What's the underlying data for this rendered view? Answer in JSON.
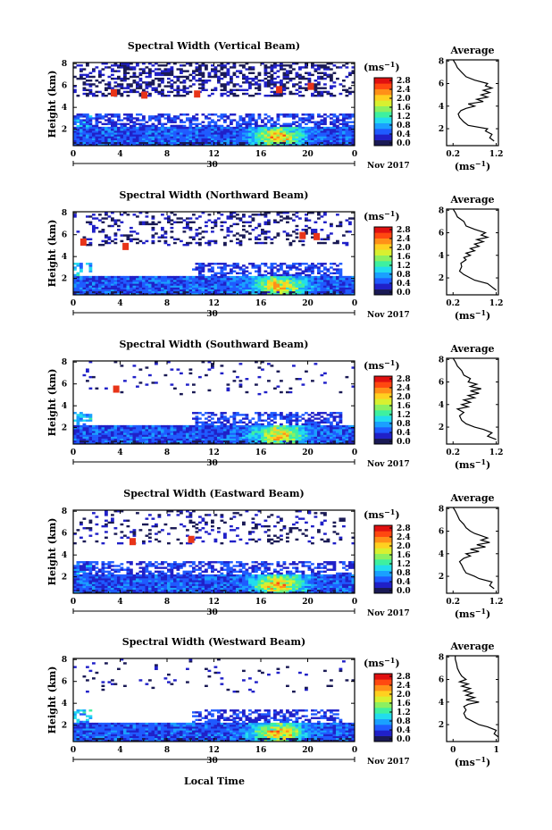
{
  "x_axis_title": "Local Time",
  "colorbar": {
    "unit": "(ms",
    "unit_sup": "−1",
    "unit_close": ")",
    "ticks": [
      "0.0",
      "0.4",
      "0.8",
      "1.2",
      "1.6",
      "2.0",
      "2.4",
      "2.8"
    ],
    "colors": [
      "#1a1a55",
      "#2020c8",
      "#1f5bff",
      "#1aa0ff",
      "#22dcee",
      "#3ef0a0",
      "#8cf060",
      "#d8f030",
      "#ffd020",
      "#ff9018",
      "#ff4810",
      "#e01010"
    ]
  },
  "chart_data": [
    {
      "type": "heatmap",
      "title": "Spectral Width (Vertical Beam)",
      "ylabel": "Height (km)",
      "ylim": [
        0.5,
        8.1
      ],
      "yticks": [
        "8",
        "6",
        "4",
        "2"
      ],
      "xlim": [
        0,
        24
      ],
      "xticks": [
        "0",
        "4",
        "8",
        "12",
        "16",
        "20",
        "0"
      ],
      "date_mark": "30",
      "date_label": "Nov 2017",
      "color_range": [
        0.0,
        2.8
      ],
      "average": {
        "title": "Average",
        "xlabel": "(ms",
        "xlabel_sup": "−1",
        "xlabel_close": ")",
        "xticks": [
          "0.2",
          "1.2"
        ],
        "xtick_values": [
          0.2,
          1.2
        ],
        "yticks": [
          "8",
          "6",
          "4",
          "2"
        ],
        "profile": [
          [
            0.9,
            1.15
          ],
          [
            1.2,
            1.05
          ],
          [
            1.5,
            1.1
          ],
          [
            1.8,
            0.95
          ],
          [
            2.0,
            1.0
          ],
          [
            2.3,
            0.55
          ],
          [
            2.6,
            0.45
          ],
          [
            3.0,
            0.35
          ],
          [
            3.3,
            0.32
          ],
          [
            3.6,
            0.38
          ],
          [
            3.8,
            0.5
          ],
          [
            4.0,
            0.7
          ],
          [
            4.2,
            0.55
          ],
          [
            4.4,
            0.9
          ],
          [
            4.6,
            0.75
          ],
          [
            4.8,
            1.0
          ],
          [
            5.0,
            0.85
          ],
          [
            5.2,
            1.05
          ],
          [
            5.4,
            0.9
          ],
          [
            5.6,
            1.1
          ],
          [
            5.8,
            0.95
          ],
          [
            6.0,
            1.0
          ],
          [
            6.3,
            0.7
          ],
          [
            6.6,
            0.5
          ],
          [
            7.0,
            0.4
          ],
          [
            7.4,
            0.3
          ],
          [
            7.8,
            0.25
          ],
          [
            8.1,
            0.2
          ]
        ]
      }
    },
    {
      "type": "heatmap",
      "title": "Spectral Width (Northward Beam)",
      "ylabel": "Height (km)",
      "ylim": [
        0.5,
        8.1
      ],
      "yticks": [
        "8",
        "6",
        "4",
        "2"
      ],
      "xlim": [
        0,
        24
      ],
      "xticks": [
        "0",
        "4",
        "8",
        "12",
        "16",
        "20",
        "0"
      ],
      "date_mark": "30",
      "date_label": "Nov 2017",
      "color_range": [
        0.0,
        2.8
      ],
      "average": {
        "title": "Average",
        "xlabel": "(ms",
        "xlabel_sup": "−1",
        "xlabel_close": ")",
        "xticks": [
          "0.2",
          "1.2"
        ],
        "xtick_values": [
          0.2,
          1.2
        ],
        "yticks": [
          "8",
          "6",
          "4",
          "2"
        ],
        "profile": [
          [
            0.9,
            1.2
          ],
          [
            1.2,
            1.1
          ],
          [
            1.5,
            1.0
          ],
          [
            1.8,
            0.7
          ],
          [
            2.0,
            0.6
          ],
          [
            2.3,
            0.45
          ],
          [
            2.6,
            0.35
          ],
          [
            3.0,
            0.4
          ],
          [
            3.3,
            0.38
          ],
          [
            3.6,
            0.5
          ],
          [
            3.8,
            0.45
          ],
          [
            4.0,
            0.6
          ],
          [
            4.2,
            0.5
          ],
          [
            4.4,
            0.7
          ],
          [
            4.6,
            0.6
          ],
          [
            4.8,
            0.8
          ],
          [
            5.0,
            0.7
          ],
          [
            5.2,
            0.9
          ],
          [
            5.4,
            0.75
          ],
          [
            5.6,
            1.0
          ],
          [
            5.8,
            0.85
          ],
          [
            6.0,
            0.95
          ],
          [
            6.3,
            0.7
          ],
          [
            6.6,
            0.5
          ],
          [
            7.0,
            0.45
          ],
          [
            7.4,
            0.3
          ],
          [
            7.8,
            0.25
          ],
          [
            8.1,
            0.2
          ]
        ]
      }
    },
    {
      "type": "heatmap",
      "title": "Spectral Width (Southward Beam)",
      "ylabel": "Height (km)",
      "ylim": [
        0.5,
        8.1
      ],
      "yticks": [
        "8",
        "6",
        "4",
        "2"
      ],
      "xlim": [
        0,
        24
      ],
      "xticks": [
        "0",
        "4",
        "8",
        "12",
        "16",
        "20",
        "0"
      ],
      "date_mark": "30",
      "date_label": "Nov 2017",
      "color_range": [
        0.0,
        2.8
      ],
      "average": {
        "title": "Average",
        "xlabel": "(ms",
        "xlabel_sup": "−1",
        "xlabel_close": ")",
        "xticks": [
          "0.2",
          "1.2"
        ],
        "xtick_values": [
          0.2,
          1.2
        ],
        "yticks": [
          "8",
          "6",
          "4",
          "2"
        ],
        "profile": [
          [
            0.9,
            1.2
          ],
          [
            1.2,
            1.0
          ],
          [
            1.5,
            1.1
          ],
          [
            1.8,
            0.9
          ],
          [
            2.0,
            0.7
          ],
          [
            2.3,
            0.5
          ],
          [
            2.6,
            0.4
          ],
          [
            3.0,
            0.35
          ],
          [
            3.3,
            0.45
          ],
          [
            3.6,
            0.3
          ],
          [
            3.8,
            0.55
          ],
          [
            4.0,
            0.4
          ],
          [
            4.2,
            0.6
          ],
          [
            4.4,
            0.45
          ],
          [
            4.6,
            0.7
          ],
          [
            4.8,
            0.55
          ],
          [
            5.0,
            0.8
          ],
          [
            5.2,
            0.6
          ],
          [
            5.4,
            0.85
          ],
          [
            5.6,
            0.6
          ],
          [
            5.8,
            0.75
          ],
          [
            6.0,
            0.55
          ],
          [
            6.3,
            0.6
          ],
          [
            6.6,
            0.45
          ],
          [
            7.0,
            0.4
          ],
          [
            7.4,
            0.3
          ],
          [
            7.8,
            0.25
          ],
          [
            8.1,
            0.2
          ]
        ]
      }
    },
    {
      "type": "heatmap",
      "title": "Spectral Width (Eastward Beam)",
      "ylabel": "Height (km)",
      "ylim": [
        0.5,
        8.1
      ],
      "yticks": [
        "8",
        "6",
        "4",
        "2"
      ],
      "xlim": [
        0,
        24
      ],
      "xticks": [
        "0",
        "4",
        "8",
        "12",
        "16",
        "20",
        "0"
      ],
      "date_mark": "30",
      "date_label": "Nov 2017",
      "color_range": [
        0.0,
        2.8
      ],
      "average": {
        "title": "Average",
        "xlabel": "(ms",
        "xlabel_sup": "−1",
        "xlabel_close": ")",
        "xticks": [
          "0.2",
          "1.2"
        ],
        "xtick_values": [
          0.2,
          1.2
        ],
        "yticks": [
          "8",
          "6",
          "4",
          "2"
        ],
        "profile": [
          [
            0.9,
            1.15
          ],
          [
            1.2,
            1.05
          ],
          [
            1.5,
            1.1
          ],
          [
            1.8,
            0.8
          ],
          [
            2.0,
            0.7
          ],
          [
            2.3,
            0.5
          ],
          [
            2.6,
            0.45
          ],
          [
            3.0,
            0.4
          ],
          [
            3.3,
            0.35
          ],
          [
            3.6,
            0.45
          ],
          [
            3.8,
            0.6
          ],
          [
            4.0,
            0.5
          ],
          [
            4.2,
            0.8
          ],
          [
            4.4,
            0.6
          ],
          [
            4.6,
            0.95
          ],
          [
            4.8,
            0.75
          ],
          [
            5.0,
            1.05
          ],
          [
            5.2,
            0.85
          ],
          [
            5.4,
            1.0
          ],
          [
            5.6,
            0.85
          ],
          [
            5.8,
            0.7
          ],
          [
            6.0,
            0.6
          ],
          [
            6.3,
            0.5
          ],
          [
            6.6,
            0.45
          ],
          [
            7.0,
            0.35
          ],
          [
            7.4,
            0.3
          ],
          [
            7.8,
            0.25
          ],
          [
            8.1,
            0.2
          ]
        ]
      }
    },
    {
      "type": "heatmap",
      "title": "Spectral Width (Westward Beam)",
      "ylabel": "Height (km)",
      "ylim": [
        0.5,
        8.1
      ],
      "yticks": [
        "8",
        "6",
        "4",
        "2"
      ],
      "xlim": [
        0,
        24
      ],
      "xticks": [
        "0",
        "4",
        "8",
        "12",
        "16",
        "20",
        "0"
      ],
      "date_mark": "30",
      "date_label": "Nov 2017",
      "color_range": [
        0.0,
        2.8
      ],
      "average": {
        "title": "Average",
        "xlabel": "(ms",
        "xlabel_sup": "−1",
        "xlabel_close": ")",
        "xticks": [
          "0",
          "1"
        ],
        "xtick_values": [
          0,
          1
        ],
        "yticks": [
          "8",
          "6",
          "4",
          "2"
        ],
        "profile": [
          [
            0.9,
            1.05
          ],
          [
            1.2,
            0.95
          ],
          [
            1.5,
            1.0
          ],
          [
            1.8,
            0.8
          ],
          [
            2.0,
            0.6
          ],
          [
            2.3,
            0.45
          ],
          [
            2.6,
            0.3
          ],
          [
            3.0,
            0.25
          ],
          [
            3.3,
            0.3
          ],
          [
            3.6,
            0.25
          ],
          [
            3.8,
            0.35
          ],
          [
            4.0,
            0.6
          ],
          [
            4.2,
            0.3
          ],
          [
            4.4,
            0.5
          ],
          [
            4.6,
            0.3
          ],
          [
            4.8,
            0.45
          ],
          [
            5.0,
            0.25
          ],
          [
            5.2,
            0.4
          ],
          [
            5.4,
            0.2
          ],
          [
            5.6,
            0.35
          ],
          [
            5.8,
            0.15
          ],
          [
            6.0,
            0.3
          ],
          [
            6.3,
            0.2
          ],
          [
            6.6,
            0.15
          ],
          [
            7.0,
            0.1
          ],
          [
            7.4,
            0.08
          ],
          [
            7.8,
            0.05
          ],
          [
            8.1,
            0.05
          ]
        ]
      }
    }
  ]
}
